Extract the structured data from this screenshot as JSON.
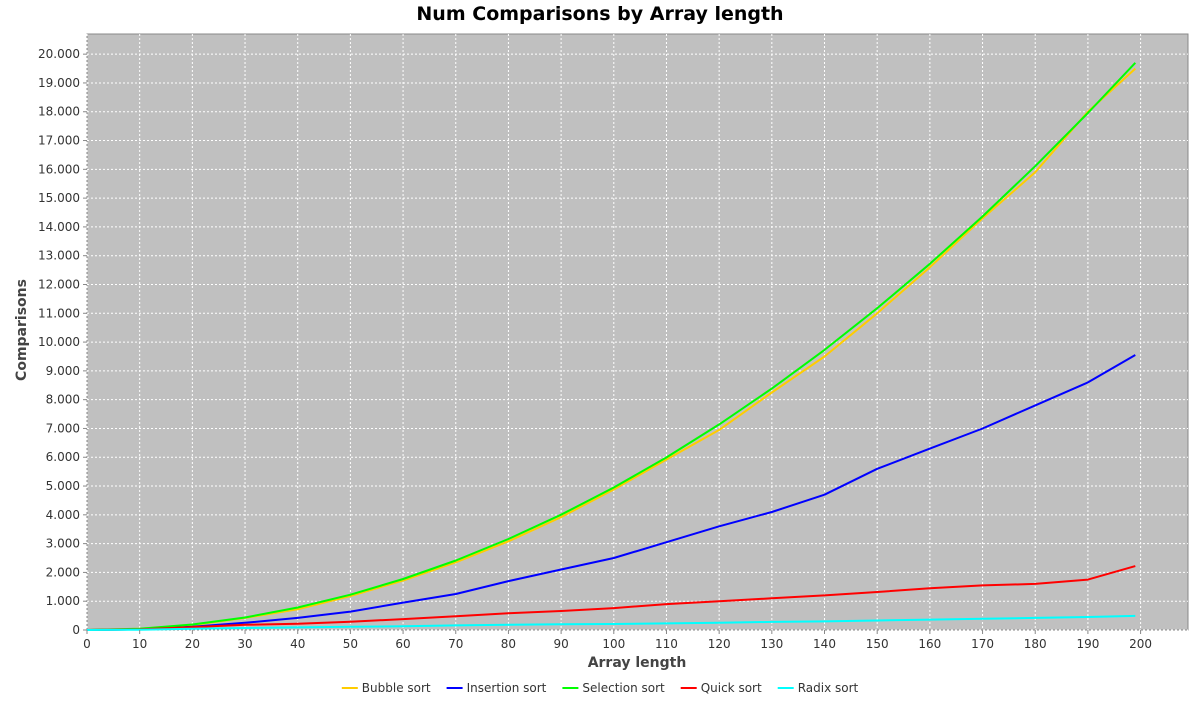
{
  "chart_data": {
    "type": "line",
    "title": "Num Comparisons by Array length",
    "xlabel": "Array length",
    "ylabel": "Comparisons",
    "xlim": [
      0,
      209
    ],
    "ylim": [
      0,
      20700
    ],
    "x_ticks": [
      0,
      10,
      20,
      30,
      40,
      50,
      60,
      70,
      80,
      90,
      100,
      110,
      120,
      130,
      140,
      150,
      160,
      170,
      180,
      190,
      200
    ],
    "y_ticks": [
      0,
      1000,
      2000,
      3000,
      4000,
      5000,
      6000,
      7000,
      8000,
      9000,
      10000,
      11000,
      12000,
      13000,
      14000,
      15000,
      16000,
      17000,
      18000,
      19000,
      20000
    ],
    "y_tick_labels": [
      "0",
      "1.000",
      "2.000",
      "3.000",
      "4.000",
      "5.000",
      "6.000",
      "7.000",
      "8.000",
      "9.000",
      "10.000",
      "11.000",
      "12.000",
      "13.000",
      "14.000",
      "15.000",
      "16.000",
      "17.000",
      "18.000",
      "19.000",
      "20.000"
    ],
    "grid": true,
    "legend_position": "bottom",
    "plot_background": "#c0c0c0",
    "x": [
      0,
      10,
      20,
      30,
      40,
      50,
      60,
      70,
      80,
      90,
      100,
      110,
      120,
      130,
      140,
      150,
      160,
      170,
      180,
      190,
      199
    ],
    "series": [
      {
        "name": "Bubble sort",
        "color": "#ffcc00",
        "values": [
          0,
          40,
          170,
          420,
          720,
          1180,
          1720,
          2350,
          3080,
          3920,
          4880,
          5920,
          6950,
          8250,
          9500,
          11000,
          12600,
          14300,
          15900,
          18000,
          19500
        ]
      },
      {
        "name": "Insertion sort",
        "color": "#0000ff",
        "values": [
          0,
          20,
          110,
          250,
          420,
          640,
          950,
          1250,
          1700,
          2100,
          2500,
          3050,
          3600,
          4100,
          4700,
          5600,
          6300,
          7000,
          7800,
          8600,
          9550
        ]
      },
      {
        "name": "Selection sort",
        "color": "#00ff00",
        "values": [
          0,
          45,
          190,
          435,
          780,
          1225,
          1770,
          2415,
          3160,
          4005,
          4950,
          5995,
          7140,
          8385,
          9730,
          11175,
          12720,
          14365,
          16110,
          17955,
          19700
        ]
      },
      {
        "name": "Quick sort",
        "color": "#ff0000",
        "values": [
          0,
          20,
          100,
          180,
          220,
          290,
          380,
          480,
          580,
          660,
          760,
          900,
          1000,
          1100,
          1200,
          1320,
          1450,
          1550,
          1600,
          1750,
          2220
        ]
      },
      {
        "name": "Radix sort",
        "color": "#00ffff",
        "values": [
          0,
          10,
          40,
          70,
          90,
          110,
          130,
          160,
          180,
          200,
          210,
          230,
          250,
          280,
          300,
          330,
          360,
          390,
          420,
          450,
          490
        ]
      }
    ]
  }
}
